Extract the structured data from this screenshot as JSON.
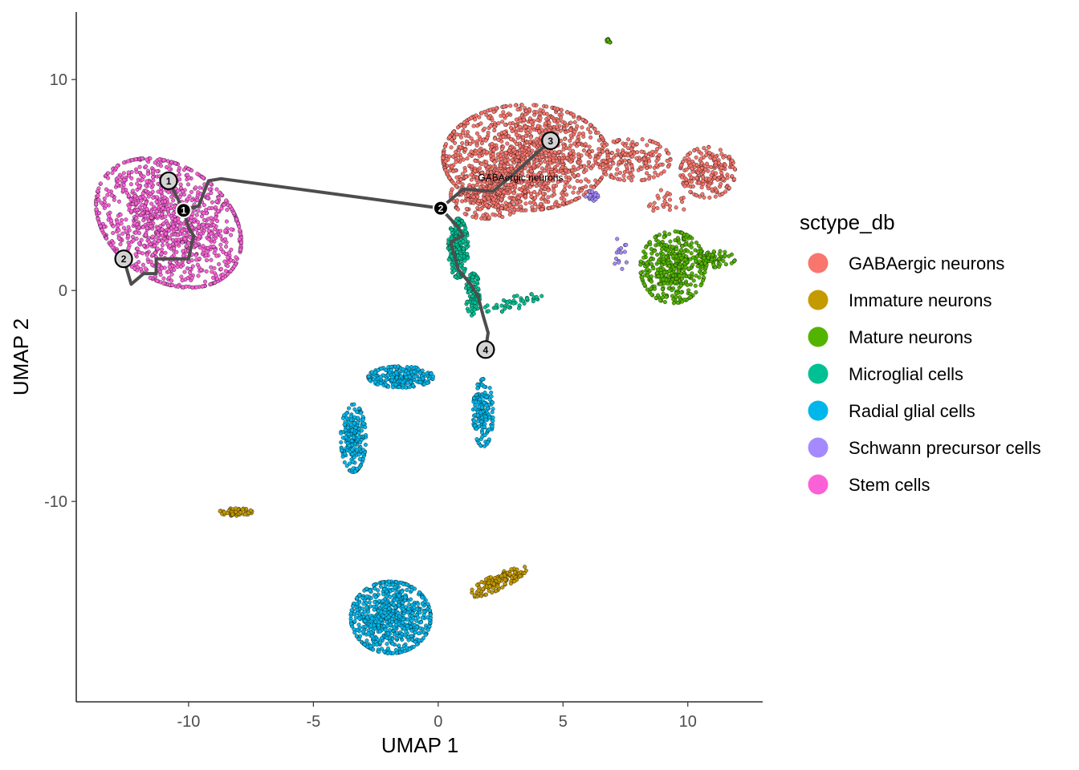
{
  "chart_data": {
    "type": "scatter",
    "xlabel": "UMAP 1",
    "ylabel": "UMAP 2",
    "xlim": [
      -14.5,
      13.0
    ],
    "ylim": [
      -19.5,
      13.2
    ],
    "xticks": [
      -10,
      -5,
      0,
      5,
      10
    ],
    "xtick_labels": [
      "-10",
      "-5",
      "0",
      "5",
      "10"
    ],
    "yticks": [
      10,
      0,
      -10
    ],
    "ytick_labels": [
      "10",
      "0",
      "-10"
    ],
    "grid": false,
    "legend_title": "sctype_db",
    "legend_position": "right",
    "annotation": {
      "text": "GABAergic neurons",
      "x": 3.3,
      "y": 5.2
    },
    "series": [
      {
        "name": "GABAergic neurons",
        "color": "#F8766D",
        "clusters": [
          {
            "cx": 3.5,
            "cy": 6.3,
            "rx": 3.3,
            "ry": 2.5,
            "n": 1300
          },
          {
            "cx": 2.0,
            "cy": 4.5,
            "rx": 1.5,
            "ry": 1.1,
            "n": 250
          },
          {
            "cx": 7.8,
            "cy": 6.2,
            "rx": 1.5,
            "ry": 1.0,
            "n": 180
          },
          {
            "cx": 10.8,
            "cy": 5.6,
            "rx": 1.1,
            "ry": 1.2,
            "n": 220
          },
          {
            "cx": 9.2,
            "cy": 4.2,
            "rx": 0.8,
            "ry": 0.6,
            "n": 25
          }
        ]
      },
      {
        "name": "Immature neurons",
        "color": "#C49A00",
        "clusters": [
          {
            "cx": -8.1,
            "cy": -10.5,
            "rx": 0.65,
            "ry": 0.18,
            "n": 55
          },
          {
            "cx": 2.4,
            "cy": -13.8,
            "rx": 1.3,
            "ry": 0.35,
            "n": 130,
            "angle": 30
          }
        ]
      },
      {
        "name": "Mature neurons",
        "color": "#53B400",
        "clusters": [
          {
            "cx": 9.4,
            "cy": 1.1,
            "rx": 1.3,
            "ry": 1.7,
            "n": 420
          },
          {
            "cx": 10.9,
            "cy": 1.5,
            "rx": 1.0,
            "ry": 0.4,
            "n": 90
          },
          {
            "cx": 6.8,
            "cy": 11.8,
            "rx": 0.1,
            "ry": 0.12,
            "n": 12
          }
        ]
      },
      {
        "name": "Microglial cells",
        "color": "#00C094",
        "clusters": [
          {
            "cx": 0.8,
            "cy": 2.0,
            "rx": 0.4,
            "ry": 1.4,
            "n": 230
          },
          {
            "cx": 1.4,
            "cy": -0.2,
            "rx": 0.3,
            "ry": 1.0,
            "n": 90
          },
          {
            "cx": 3.0,
            "cy": -0.6,
            "rx": 1.2,
            "ry": 0.3,
            "n": 45,
            "angle": 15
          }
        ]
      },
      {
        "name": "Radial glial cells",
        "color": "#00B6EB",
        "clusters": [
          {
            "cx": -1.5,
            "cy": -4.1,
            "rx": 1.3,
            "ry": 0.5,
            "n": 240
          },
          {
            "cx": -3.4,
            "cy": -7.0,
            "rx": 0.5,
            "ry": 1.6,
            "n": 220
          },
          {
            "cx": 1.8,
            "cy": -5.8,
            "rx": 0.4,
            "ry": 1.6,
            "n": 170
          },
          {
            "cx": -1.9,
            "cy": -15.5,
            "rx": 1.6,
            "ry": 1.7,
            "n": 700
          }
        ]
      },
      {
        "name": "Schwann precursor cells",
        "color": "#A58AFF",
        "clusters": [
          {
            "cx": 6.2,
            "cy": 4.5,
            "rx": 0.3,
            "ry": 0.25,
            "n": 25
          },
          {
            "cx": 7.3,
            "cy": 1.8,
            "rx": 0.3,
            "ry": 0.8,
            "n": 15
          }
        ]
      },
      {
        "name": "Stem cells",
        "color": "#FB61D7",
        "clusters": [
          {
            "cx": -10.8,
            "cy": 3.2,
            "rx": 2.5,
            "ry": 3.4,
            "n": 1200,
            "angle": 40
          }
        ]
      }
    ],
    "trajectory": {
      "color": "#4d4d4d",
      "segments": [
        [
          [
            -10.2,
            3.8
          ],
          [
            -9.6,
            4.0
          ],
          [
            -9.2,
            5.2
          ],
          [
            -8.7,
            5.3
          ],
          [
            0.1,
            3.9
          ]
        ],
        [
          [
            -10.8,
            5.2
          ],
          [
            -10.5,
            4.5
          ],
          [
            -10.2,
            3.8
          ],
          [
            -10.0,
            3.0
          ],
          [
            -9.8,
            2.6
          ],
          [
            -10.0,
            1.5
          ],
          [
            -11.3,
            1.5
          ],
          [
            -11.3,
            0.8
          ],
          [
            -11.8,
            0.8
          ],
          [
            -12.3,
            0.3
          ],
          [
            -12.6,
            1.5
          ]
        ],
        [
          [
            0.1,
            3.9
          ],
          [
            0.8,
            3.0
          ],
          [
            1.0,
            2.6
          ],
          [
            0.5,
            2.3
          ],
          [
            0.8,
            1.0
          ],
          [
            1.3,
            0.3
          ],
          [
            1.6,
            -0.3
          ],
          [
            1.8,
            -1.2
          ],
          [
            2.0,
            -2.0
          ],
          [
            1.9,
            -2.8
          ]
        ],
        [
          [
            0.1,
            3.9
          ],
          [
            1.0,
            4.8
          ],
          [
            2.2,
            4.7
          ],
          [
            3.0,
            5.5
          ],
          [
            4.5,
            7.1
          ]
        ]
      ],
      "nodes": [
        {
          "label": "1",
          "x": -10.2,
          "y": 3.8,
          "style": "branch"
        },
        {
          "label": "2",
          "x": 0.1,
          "y": 3.9,
          "style": "branch"
        },
        {
          "label": "1",
          "x": -10.8,
          "y": 5.2,
          "style": "leaf"
        },
        {
          "label": "2",
          "x": -12.6,
          "y": 1.5,
          "style": "leaf"
        },
        {
          "label": "3",
          "x": 4.5,
          "y": 7.1,
          "style": "leaf"
        },
        {
          "label": "4",
          "x": 1.9,
          "y": -2.8,
          "style": "leaf"
        }
      ]
    }
  }
}
